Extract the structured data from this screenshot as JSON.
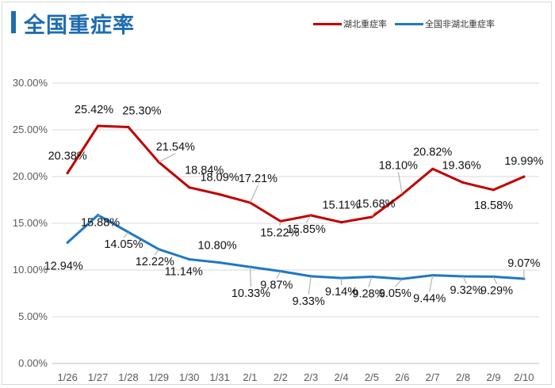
{
  "header": {
    "title": "全国重症率"
  },
  "chart_data": {
    "type": "line",
    "title": "全国重症率",
    "categories": [
      "1/26",
      "1/27",
      "1/28",
      "1/29",
      "1/30",
      "1/31",
      "2/1",
      "2/2",
      "2/3",
      "2/4",
      "2/5",
      "2/6",
      "2/7",
      "2/8",
      "2/9",
      "2/10"
    ],
    "ylim": [
      0,
      30
    ],
    "yticks": [
      "0.00%",
      "5.00%",
      "10.00%",
      "15.00%",
      "20.00%",
      "25.00%",
      "30.00%"
    ],
    "ytick_values": [
      0,
      5,
      10,
      15,
      20,
      25,
      30
    ],
    "grid": true,
    "legend_position": "top-right",
    "series": [
      {
        "name": "湖北重症率",
        "color": "#c00000",
        "values": [
          20.38,
          25.42,
          25.3,
          21.54,
          18.84,
          18.09,
          17.21,
          15.22,
          15.85,
          15.11,
          15.68,
          18.1,
          20.82,
          19.36,
          18.58,
          19.99
        ],
        "labels": [
          "20.38%",
          "25.42%",
          "25.30%",
          "21.54%",
          "18.84%",
          "18.09%",
          "17.21%",
          "15.22%",
          "15.85%",
          "15.11%",
          "15.68%",
          "18.10%",
          "20.82%",
          "19.36%",
          "18.58%",
          "19.99%"
        ]
      },
      {
        "name": "全国非湖北重症率",
        "color": "#1f78c1",
        "values": [
          12.94,
          15.88,
          14.05,
          12.22,
          11.14,
          10.8,
          10.33,
          9.87,
          9.33,
          9.14,
          9.28,
          9.05,
          9.44,
          9.32,
          9.29,
          9.07
        ],
        "labels": [
          "12.94%",
          "15.88%",
          "14.05%",
          "12.22%",
          "11.14%",
          "10.80%",
          "10.33%",
          "9.87%",
          "9.33%",
          "9.14%",
          "9.28%",
          "9.05%",
          "9.44%",
          "9.32%",
          "9.29%",
          "9.07%"
        ]
      }
    ]
  }
}
